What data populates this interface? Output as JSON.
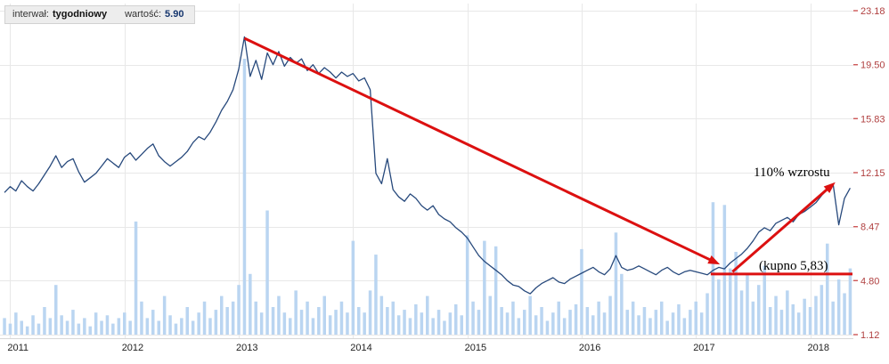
{
  "legend": {
    "interval_label": "interwał:",
    "interval_value": "tygodniowy",
    "value_label": "wartość:",
    "value_value": "5.90"
  },
  "colors": {
    "price_line": "#27497c",
    "volume_bar": "#bad5f1",
    "grid": "#e8e8e8",
    "axis_line": "#d8d8d8",
    "y_label": "#b04040",
    "y_tick": "#cc5555",
    "x_label": "#222222",
    "annotation_red": "#dc1010"
  },
  "chart_data": {
    "type": "line",
    "title": "",
    "xlabel": "",
    "ylabel": "",
    "legend_position": "top-left",
    "grid": true,
    "x_ticks": [
      "2011",
      "2012",
      "2013",
      "2014",
      "2015",
      "2016",
      "2017",
      "2018"
    ],
    "y_ticks": [
      "23.18",
      "19.50",
      "15.83",
      "12.15",
      "8.47",
      "4.80",
      "1.12"
    ],
    "x_range": [
      2010.95,
      2018.37
    ],
    "y_range": [
      1.12,
      23.18
    ],
    "sample_start": 2010.95,
    "sample_step": 0.05,
    "series": [
      {
        "name": "price",
        "type": "line",
        "values": [
          10.8,
          11.2,
          10.9,
          11.6,
          11.2,
          10.9,
          11.4,
          12.0,
          12.6,
          13.3,
          12.5,
          12.9,
          13.1,
          12.2,
          11.5,
          11.8,
          12.1,
          12.6,
          13.1,
          12.8,
          12.5,
          13.2,
          13.5,
          13.0,
          13.4,
          13.8,
          14.1,
          13.3,
          12.9,
          12.6,
          12.9,
          13.2,
          13.6,
          14.2,
          14.6,
          14.4,
          14.9,
          15.6,
          16.4,
          17.0,
          17.8,
          19.2,
          21.4,
          18.7,
          19.8,
          18.5,
          20.3,
          19.5,
          20.4,
          19.4,
          20.0,
          19.6,
          19.9,
          19.1,
          19.5,
          18.9,
          19.3,
          19.0,
          18.6,
          19.0,
          18.7,
          18.9,
          18.4,
          18.6,
          17.8,
          12.1,
          11.4,
          13.1,
          11.0,
          10.5,
          10.2,
          10.7,
          10.4,
          9.9,
          9.6,
          9.9,
          9.3,
          9.0,
          8.8,
          8.4,
          8.1,
          7.7,
          7.1,
          6.5,
          6.1,
          5.8,
          5.5,
          5.2,
          4.8,
          4.5,
          4.4,
          4.1,
          3.9,
          4.3,
          4.6,
          4.8,
          5.0,
          4.7,
          4.6,
          4.9,
          5.1,
          5.3,
          5.5,
          5.7,
          5.4,
          5.2,
          5.6,
          6.5,
          5.7,
          5.5,
          5.6,
          5.8,
          5.6,
          5.4,
          5.2,
          5.5,
          5.7,
          5.4,
          5.2,
          5.4,
          5.5,
          5.4,
          5.3,
          5.2,
          5.5,
          5.7,
          5.6,
          6.0,
          6.3,
          6.6,
          7.0,
          7.5,
          8.1,
          8.4,
          8.2,
          8.7,
          8.9,
          9.1,
          8.8,
          9.3,
          9.5,
          9.8,
          10.1,
          10.6,
          11.0,
          11.4,
          8.6,
          10.4,
          11.1
        ]
      },
      {
        "name": "volume",
        "type": "bar",
        "unit": "relative-0-100",
        "values": [
          6,
          4,
          8,
          5,
          3,
          7,
          4,
          10,
          6,
          18,
          7,
          5,
          9,
          4,
          6,
          3,
          8,
          5,
          7,
          4,
          6,
          8,
          5,
          41,
          12,
          6,
          9,
          5,
          14,
          7,
          4,
          6,
          10,
          5,
          8,
          12,
          6,
          9,
          14,
          10,
          12,
          18,
          100,
          22,
          12,
          8,
          45,
          10,
          14,
          8,
          6,
          16,
          9,
          12,
          6,
          10,
          14,
          7,
          9,
          12,
          8,
          34,
          10,
          8,
          16,
          29,
          14,
          10,
          12,
          7,
          9,
          6,
          11,
          8,
          14,
          6,
          9,
          5,
          8,
          11,
          7,
          36,
          12,
          9,
          34,
          14,
          32,
          10,
          8,
          12,
          6,
          9,
          14,
          7,
          10,
          5,
          8,
          12,
          6,
          9,
          11,
          31,
          10,
          7,
          12,
          8,
          14,
          37,
          22,
          9,
          12,
          7,
          10,
          6,
          9,
          12,
          5,
          8,
          11,
          6,
          9,
          12,
          8,
          15,
          48,
          20,
          47,
          24,
          30,
          16,
          22,
          12,
          18,
          25,
          10,
          14,
          9,
          16,
          11,
          8,
          13,
          10,
          14,
          18,
          33,
          12,
          20,
          15,
          24
        ]
      }
    ],
    "annotations": {
      "downtrend_arrow": {
        "from_x": 2013.05,
        "from_y": 21.3,
        "to_x": 2017.21,
        "to_y": 5.9
      },
      "uptrend_arrow": {
        "from_x": 2017.32,
        "from_y": 5.4,
        "to_x": 2018.22,
        "to_y": 11.5
      },
      "buy_level_line": {
        "y": 5.25,
        "from_x": 2017.13,
        "to_x": 2018.37
      },
      "growth_label": {
        "text": "110% wzrostu"
      },
      "buy_label": {
        "text": "(kupno 5,83)"
      }
    }
  }
}
